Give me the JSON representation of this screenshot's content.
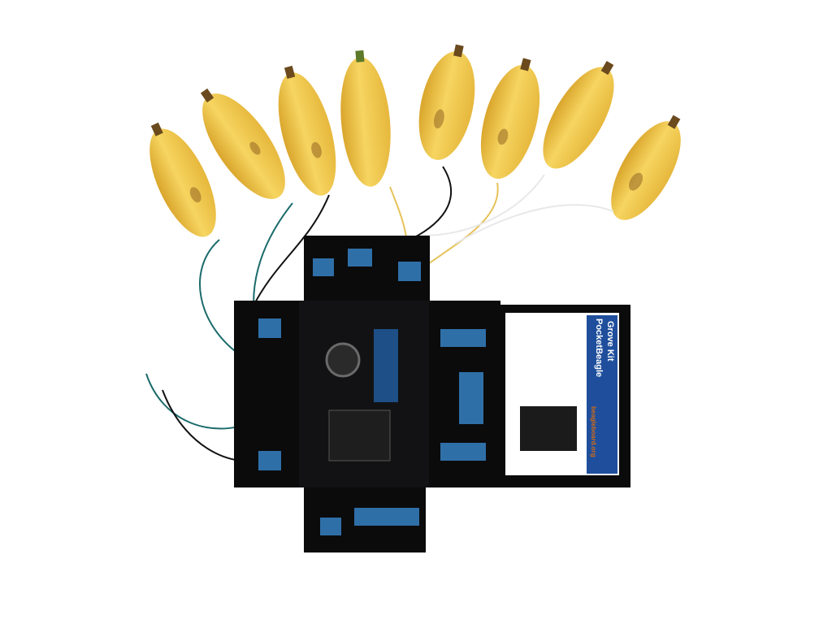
{
  "kit_card": {
    "title_line1": "PocketBeagle",
    "title_line2": "Grove Kit",
    "brand": "beagleboard.org"
  },
  "colors": {
    "background": "#ffffff",
    "banana": "#f3c94a",
    "banana_shade": "#d9a52c",
    "acrylic": "#0b0b0c",
    "grove_module": "#2f6fa8",
    "card_blue": "#1f4f9c"
  }
}
